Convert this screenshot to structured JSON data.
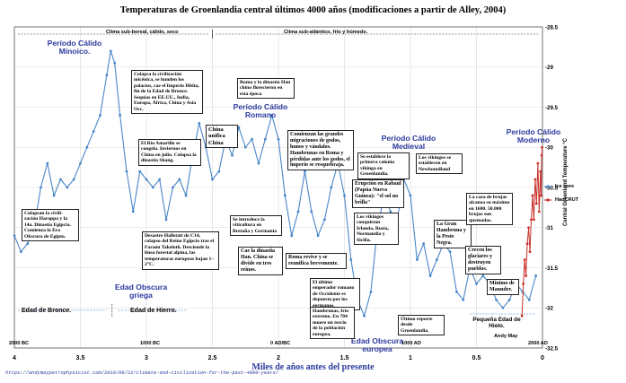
{
  "chart_data": {
    "type": "line",
    "title": "Temperaturas de Groenlandia central últimos 4000 años (modificaciones a partir de Alley, 2004)",
    "xlabel": "Miles de años antes del presente",
    "ylabel": "Central Greenland Temperature °C",
    "xlim": [
      4,
      0
    ],
    "ylim": [
      -32.5,
      -28.5
    ],
    "x_ticks": [
      4,
      3.5,
      3,
      2.5,
      2,
      1.5,
      1,
      0.5,
      0
    ],
    "y_ticks": [
      -28.5,
      -29,
      -29.5,
      -30,
      -30.5,
      -31,
      -31.5,
      -32,
      -32.5
    ],
    "x_tick_labels": [
      "4",
      "3.5",
      "3",
      "2.5",
      "2",
      "1.5",
      "1",
      "0.5",
      "0"
    ],
    "y_tick_labels": [
      "-28.5",
      "-29",
      "-29.5",
      "-30",
      "-30.5",
      "-31",
      "-31.5",
      "-32",
      "-32.5"
    ],
    "grid": true,
    "legend": "right",
    "series": [
      {
        "name": "Ice core",
        "color": "#4a86c8",
        "x": [
          4.0,
          3.95,
          3.9,
          3.85,
          3.8,
          3.75,
          3.7,
          3.65,
          3.6,
          3.55,
          3.5,
          3.45,
          3.4,
          3.35,
          3.3,
          3.27,
          3.24,
          3.2,
          3.15,
          3.1,
          3.05,
          3.0,
          2.95,
          2.9,
          2.85,
          2.8,
          2.75,
          2.7,
          2.65,
          2.6,
          2.55,
          2.5,
          2.45,
          2.4,
          2.35,
          2.3,
          2.25,
          2.2,
          2.15,
          2.1,
          2.05,
          2.0,
          1.95,
          1.9,
          1.85,
          1.8,
          1.75,
          1.7,
          1.65,
          1.6,
          1.55,
          1.5,
          1.45,
          1.4,
          1.35,
          1.3,
          1.25,
          1.2,
          1.15,
          1.1,
          1.05,
          1.0,
          0.95,
          0.9,
          0.85,
          0.8,
          0.75,
          0.7,
          0.65,
          0.6,
          0.55,
          0.5,
          0.45,
          0.4,
          0.35,
          0.3,
          0.25,
          0.2,
          0.15,
          0.1,
          0.05
        ],
        "values": [
          -31.1,
          -31.3,
          -31.2,
          -31.0,
          -30.5,
          -30.2,
          -30.6,
          -30.4,
          -30.5,
          -30.4,
          -30.2,
          -30.0,
          -29.8,
          -29.6,
          -29.1,
          -28.8,
          -28.95,
          -29.6,
          -30.3,
          -30.8,
          -30.3,
          -30.4,
          -30.5,
          -30.4,
          -30.9,
          -30.5,
          -30.4,
          -30.6,
          -30.1,
          -29.7,
          -30.0,
          -30.4,
          -30.3,
          -29.9,
          -30.1,
          -29.75,
          -30.0,
          -29.9,
          -30.2,
          -29.9,
          -29.6,
          -29.9,
          -30.6,
          -31.1,
          -30.8,
          -30.3,
          -30.8,
          -31.1,
          -30.9,
          -30.5,
          -30.2,
          -30.6,
          -31.4,
          -31.9,
          -32.1,
          -31.8,
          -31.0,
          -30.6,
          -30.8,
          -30.9,
          -30.4,
          -30.6,
          -31.4,
          -31.2,
          -31.6,
          -31.4,
          -31.2,
          -31.3,
          -31.8,
          -31.9,
          -31.5,
          -31.7,
          -31.6,
          -31.7,
          -31.9,
          -32.0,
          -31.9,
          -31.7,
          -31.8,
          -31.9,
          -31.6
        ]
      },
      {
        "name": "HadCRUT",
        "color": "#c8312b",
        "x": [
          0.155,
          0.145,
          0.135,
          0.125,
          0.115,
          0.105,
          0.095,
          0.085,
          0.075,
          0.065,
          0.055,
          0.045,
          0.035,
          0.025,
          0.015,
          0.01,
          0.006,
          0.003
        ],
        "values": [
          -32.1,
          -31.7,
          -31.4,
          -31.6,
          -31.2,
          -31.0,
          -31.3,
          -30.9,
          -30.6,
          -30.9,
          -30.4,
          -30.7,
          -30.2,
          -30.8,
          -30.3,
          -30.6,
          -30.1,
          -30.0
        ]
      }
    ],
    "date_labels": [
      "2000 BC",
      "1000 BC",
      "0 AD/BC",
      "1000 AD",
      "2000 AD"
    ],
    "credit": "Andy May",
    "url": "https://andymaypetrophysicist.com/2016/06/22/climate-and-civilization-for-the-past-4000-years/",
    "climate_bands": [
      {
        "label": "Clima sub-boreal, cálido, seco"
      },
      {
        "label": "Clima sub-atlántico, frío y húmedo."
      }
    ],
    "eras": [
      {
        "label": "Edad de Bronce."
      },
      {
        "label": "Edad de Hierro."
      },
      {
        "label": "Pequeña Edad de Hielo."
      }
    ],
    "periods": [
      {
        "label": "Período Cálido Minoico."
      },
      {
        "label": "Período Cálido Romano"
      },
      {
        "label": "Período Cálido Medieval"
      },
      {
        "label": "Período Cálido Moderno"
      },
      {
        "label": "Edad Obscura griega"
      },
      {
        "label": "Edad Obscura europea"
      }
    ],
    "annotations": [
      {
        "text": "Colapsan la civili-zación Harappa y la 14a. Dinastía Egipcia. Comienza la Era Obscura de Egipto."
      },
      {
        "text": "Colapsa la civilización micénica, se hunden los palacios, cae el Imperio Hitita, fin de la Edad de Bronce. Sequías en EE.UU., India, Europa, África, China y Asia Occ."
      },
      {
        "text": "El Río Amarillo se congela. Inviernos en China en julio. Colapsa la dinastía Shang."
      },
      {
        "text": "Desastre Hallstatt de C14, colapso del Reino Egipcio tras el Faraón Takeloth. Desciende la línea forestal alpina, las temperaturas europeas bajan 1–2°C."
      },
      {
        "text": "China unifica China"
      },
      {
        "text": "Roma y la dinastía Han chino florecieron en esta época"
      },
      {
        "text": "Se introduce la viticultura en Bretaña y Germania"
      },
      {
        "text": "Cae la dinastía Han. China se divide en tres reinos."
      },
      {
        "text": "Comienzan las grandes migraciones de godos, hunos y vándalos. Hambrunas en Roma y pérdidas ante los godos, el imperio se resquebraja."
      },
      {
        "text": "Roma revive y se reunifica brevemente."
      },
      {
        "text": "El último emperador romano de Occidente es depuesto por los germanos."
      },
      {
        "text": "Hambrunas, frío extremo. En 784 muere un tercio de la población europea."
      },
      {
        "text": "Se establece la primera colonia vikinga en Groenlandia."
      },
      {
        "text": "Erupción en Rabaul (Papúa Nueva Guinea): \"el sol no brilla\""
      },
      {
        "text": "Los vikingos conquistan Irlanda, Rusia, Normandía y Sicilia."
      },
      {
        "text": "Último reporte desde Groenlandia."
      },
      {
        "text": "Los vikingos se establecen en Newfoundland"
      },
      {
        "text": "La Gran Hambruna y la Peste Negra."
      },
      {
        "text": "Crecen los glaciares y destruyen pueblos."
      },
      {
        "text": "La caza de brujas alcanza su máximo en 1600. 50.000 brujas son quemadas."
      },
      {
        "text": "Mínimo de Maunder."
      }
    ]
  }
}
